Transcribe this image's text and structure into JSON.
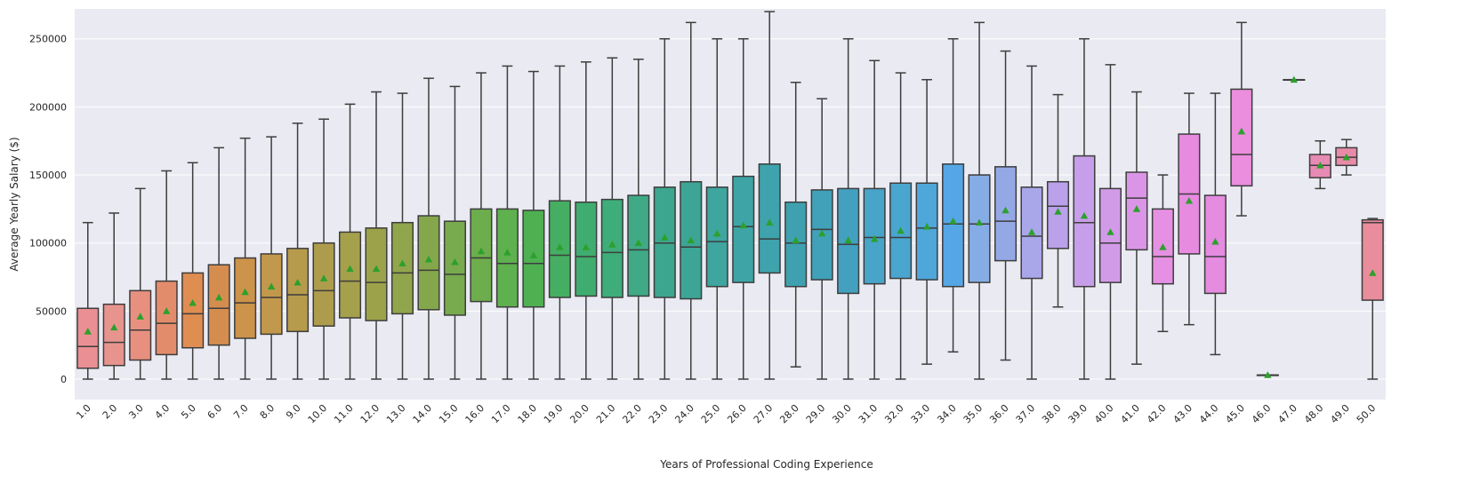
{
  "chart_data": {
    "type": "box",
    "xlabel": "Years of Professional Coding Experience",
    "ylabel": "Average Yearly Salary ($)",
    "ylim": [
      -15000,
      272000
    ],
    "yticks": [
      0,
      50000,
      100000,
      150000,
      200000,
      250000
    ],
    "ytick_labels": [
      "0",
      "50000",
      "100000",
      "150000",
      "200000",
      "250000"
    ],
    "grid": true,
    "legend": "none",
    "background": "#eaeaf2",
    "mean_marker_color": "#2ca02c",
    "categories": [
      "1.0",
      "2.0",
      "3.0",
      "4.0",
      "5.0",
      "6.0",
      "7.0",
      "8.0",
      "9.0",
      "10.0",
      "11.0",
      "12.0",
      "13.0",
      "14.0",
      "15.0",
      "16.0",
      "17.0",
      "18.0",
      "19.0",
      "20.0",
      "21.0",
      "22.0",
      "23.0",
      "24.0",
      "25.0",
      "26.0",
      "27.0",
      "28.0",
      "29.0",
      "30.0",
      "31.0",
      "32.0",
      "33.0",
      "34.0",
      "35.0",
      "36.0",
      "37.0",
      "38.0",
      "39.0",
      "40.0",
      "41.0",
      "42.0",
      "43.0",
      "44.0",
      "45.0",
      "46.0",
      "47.0",
      "48.0",
      "49.0",
      "50.0"
    ],
    "colors": [
      "#ea8f93",
      "#e8948e",
      "#e8907f",
      "#e38c6c",
      "#e08d52",
      "#d48d4f",
      "#cc934a",
      "#c2994c",
      "#b79b4c",
      "#ae9c4d",
      "#a5a04c",
      "#9ca24a",
      "#91a54c",
      "#85a74c",
      "#78aa4e",
      "#6dad4d",
      "#5fb04e",
      "#4fb052",
      "#45ae62",
      "#3fad6f",
      "#3ead79",
      "#3faa85",
      "#3da68e",
      "#3da595",
      "#3ea59f",
      "#3fa4a5",
      "#3ea3ac",
      "#3fa1b0",
      "#41a1b8",
      "#43a1bf",
      "#48a4c8",
      "#4aa5cf",
      "#4ea6d9",
      "#55a6e4",
      "#85ace4",
      "#95a8e6",
      "#a9a6ea",
      "#baa1ea",
      "#c79ee9",
      "#d29be8",
      "#db95e6",
      "#e590e2",
      "#e68be0",
      "#e58be0",
      "#ea8edd",
      "#e78ccb",
      "#e88cbd",
      "#e88bb4",
      "#e98ba8",
      "#e98c9c"
    ],
    "boxes": [
      {
        "min": 0,
        "q1": 8000,
        "median": 24000,
        "q3": 52000,
        "max": 115000,
        "mean": 35000
      },
      {
        "min": 0,
        "q1": 10000,
        "median": 27000,
        "q3": 55000,
        "max": 122000,
        "mean": 38000
      },
      {
        "min": 0,
        "q1": 14000,
        "median": 36000,
        "q3": 65000,
        "max": 140000,
        "mean": 46000
      },
      {
        "min": 0,
        "q1": 18000,
        "median": 41000,
        "q3": 72000,
        "max": 153000,
        "mean": 50000
      },
      {
        "min": 0,
        "q1": 23000,
        "median": 48000,
        "q3": 78000,
        "max": 159000,
        "mean": 56000
      },
      {
        "min": 0,
        "q1": 25000,
        "median": 52000,
        "q3": 84000,
        "max": 170000,
        "mean": 60000
      },
      {
        "min": 0,
        "q1": 30000,
        "median": 56000,
        "q3": 89000,
        "max": 177000,
        "mean": 64000
      },
      {
        "min": 0,
        "q1": 33000,
        "median": 60000,
        "q3": 92000,
        "max": 178000,
        "mean": 68000
      },
      {
        "min": 0,
        "q1": 35000,
        "median": 62000,
        "q3": 96000,
        "max": 188000,
        "mean": 71000
      },
      {
        "min": 0,
        "q1": 39000,
        "median": 65000,
        "q3": 100000,
        "max": 191000,
        "mean": 74000
      },
      {
        "min": 0,
        "q1": 45000,
        "median": 72000,
        "q3": 108000,
        "max": 202000,
        "mean": 81000
      },
      {
        "min": 0,
        "q1": 43000,
        "median": 71000,
        "q3": 111000,
        "max": 211000,
        "mean": 81000
      },
      {
        "min": 0,
        "q1": 48000,
        "median": 78000,
        "q3": 115000,
        "max": 210000,
        "mean": 85000
      },
      {
        "min": 0,
        "q1": 51000,
        "median": 80000,
        "q3": 120000,
        "max": 221000,
        "mean": 88000
      },
      {
        "min": 0,
        "q1": 47000,
        "median": 77000,
        "q3": 116000,
        "max": 215000,
        "mean": 86000
      },
      {
        "min": 0,
        "q1": 57000,
        "median": 89000,
        "q3": 125000,
        "max": 225000,
        "mean": 94000
      },
      {
        "min": 0,
        "q1": 53000,
        "median": 85000,
        "q3": 125000,
        "max": 230000,
        "mean": 93000
      },
      {
        "min": 0,
        "q1": 53000,
        "median": 85000,
        "q3": 124000,
        "max": 226000,
        "mean": 91000
      },
      {
        "min": 0,
        "q1": 60000,
        "median": 91000,
        "q3": 131000,
        "max": 230000,
        "mean": 97000
      },
      {
        "min": 0,
        "q1": 61000,
        "median": 90000,
        "q3": 130000,
        "max": 233000,
        "mean": 97000
      },
      {
        "min": 0,
        "q1": 60000,
        "median": 93000,
        "q3": 132000,
        "max": 236000,
        "mean": 99000
      },
      {
        "min": 0,
        "q1": 61000,
        "median": 95000,
        "q3": 135000,
        "max": 235000,
        "mean": 100000
      },
      {
        "min": 0,
        "q1": 60000,
        "median": 100000,
        "q3": 141000,
        "max": 250000,
        "mean": 104000
      },
      {
        "min": 0,
        "q1": 59000,
        "median": 97000,
        "q3": 145000,
        "max": 262000,
        "mean": 102000
      },
      {
        "min": 0,
        "q1": 68000,
        "median": 101000,
        "q3": 141000,
        "max": 250000,
        "mean": 107000
      },
      {
        "min": 0,
        "q1": 71000,
        "median": 112000,
        "q3": 149000,
        "max": 250000,
        "mean": 113000
      },
      {
        "min": 0,
        "q1": 78000,
        "median": 103000,
        "q3": 158000,
        "max": 270000,
        "mean": 115000
      },
      {
        "min": 9000,
        "q1": 68000,
        "median": 100000,
        "q3": 130000,
        "max": 218000,
        "mean": 102000
      },
      {
        "min": 0,
        "q1": 73000,
        "median": 110000,
        "q3": 139000,
        "max": 206000,
        "mean": 107000
      },
      {
        "min": 0,
        "q1": 63000,
        "median": 99000,
        "q3": 140000,
        "max": 250000,
        "mean": 102000
      },
      {
        "min": 0,
        "q1": 70000,
        "median": 104000,
        "q3": 140000,
        "max": 234000,
        "mean": 103000
      },
      {
        "min": 0,
        "q1": 74000,
        "median": 104000,
        "q3": 144000,
        "max": 225000,
        "mean": 109000
      },
      {
        "min": 11000,
        "q1": 73000,
        "median": 111000,
        "q3": 144000,
        "max": 220000,
        "mean": 112000
      },
      {
        "min": 20000,
        "q1": 68000,
        "median": 114000,
        "q3": 158000,
        "max": 250000,
        "mean": 116000
      },
      {
        "min": 0,
        "q1": 71000,
        "median": 114000,
        "q3": 150000,
        "max": 262000,
        "mean": 115000
      },
      {
        "min": 14000,
        "q1": 87000,
        "median": 116000,
        "q3": 156000,
        "max": 241000,
        "mean": 124000
      },
      {
        "min": 0,
        "q1": 74000,
        "median": 105000,
        "q3": 141000,
        "max": 230000,
        "mean": 108000
      },
      {
        "min": 53000,
        "q1": 96000,
        "median": 127000,
        "q3": 145000,
        "max": 209000,
        "mean": 123000
      },
      {
        "min": 0,
        "q1": 68000,
        "median": 115000,
        "q3": 164000,
        "max": 250000,
        "mean": 120000
      },
      {
        "min": 0,
        "q1": 71000,
        "median": 100000,
        "q3": 140000,
        "max": 231000,
        "mean": 108000
      },
      {
        "min": 11000,
        "q1": 95000,
        "median": 133000,
        "q3": 152000,
        "max": 211000,
        "mean": 125000
      },
      {
        "min": 35000,
        "q1": 70000,
        "median": 90000,
        "q3": 125000,
        "max": 150000,
        "mean": 97000
      },
      {
        "min": 40000,
        "q1": 92000,
        "median": 136000,
        "q3": 180000,
        "max": 210000,
        "mean": 131000
      },
      {
        "min": 18000,
        "q1": 63000,
        "median": 90000,
        "q3": 135000,
        "max": 210000,
        "mean": 101000
      },
      {
        "min": 120000,
        "q1": 142000,
        "median": 165000,
        "q3": 213000,
        "max": 262000,
        "mean": 182000
      },
      {
        "min": 3000,
        "q1": 3000,
        "median": 3000,
        "q3": 3000,
        "max": 3000,
        "mean": 3000
      },
      {
        "min": 220000,
        "q1": 220000,
        "median": 220000,
        "q3": 220000,
        "max": 220000,
        "mean": 220000
      },
      {
        "min": 140000,
        "q1": 148000,
        "median": 157000,
        "q3": 165000,
        "max": 175000,
        "mean": 157000
      },
      {
        "min": 150000,
        "q1": 157000,
        "median": 163000,
        "q3": 170000,
        "max": 176000,
        "mean": 163000
      },
      {
        "min": 0,
        "q1": 58000,
        "median": 115000,
        "q3": 117000,
        "max": 118000,
        "mean": 78000
      }
    ]
  }
}
